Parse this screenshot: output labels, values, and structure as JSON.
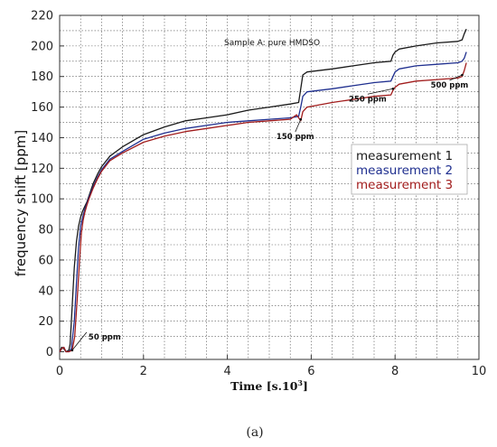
{
  "caption": "(a)",
  "chart_data": {
    "type": "line",
    "title": "Sample A: pure HMDSO",
    "xlabel": "Time [s.10",
    "xlabel_sup": "3",
    "xlabel_close": "]",
    "ylabel": "frequency shift  [ppm]",
    "xlim": [
      0,
      10
    ],
    "ylim": [
      -5,
      220
    ],
    "xticks": [
      0,
      2,
      4,
      6,
      8,
      10
    ],
    "yticks": [
      0,
      20,
      40,
      60,
      80,
      100,
      120,
      140,
      160,
      180,
      200,
      220
    ],
    "grid": true,
    "legend_position": "right",
    "annotations": [
      {
        "text": "50 ppm",
        "x": 0.3,
        "y": 1
      },
      {
        "text": "150 ppm",
        "x": 5.75,
        "y": 152
      },
      {
        "text": "250 ppm",
        "x": 7.95,
        "y": 172
      },
      {
        "text": "500 ppm",
        "x": 9.6,
        "y": 181
      }
    ],
    "series": [
      {
        "name": "measurement 1",
        "color": "#1a1a1a",
        "x": [
          0,
          0.05,
          0.1,
          0.15,
          0.22,
          0.25,
          0.3,
          0.35,
          0.4,
          0.45,
          0.5,
          0.55,
          0.6,
          0.65,
          0.7,
          0.8,
          0.9,
          1.0,
          1.2,
          1.5,
          2.0,
          2.5,
          3.0,
          3.5,
          4.0,
          4.5,
          5.0,
          5.5,
          5.7,
          5.75,
          5.8,
          5.9,
          6.5,
          7.0,
          7.5,
          7.9,
          7.95,
          8.0,
          8.1,
          8.5,
          9.0,
          9.5,
          9.6,
          9.65,
          9.7
        ],
        "y": [
          0,
          3,
          2,
          0,
          1,
          5,
          30,
          55,
          72,
          82,
          88,
          92,
          95,
          98,
          102,
          110,
          116,
          121,
          128,
          134,
          142,
          147,
          151,
          153,
          155,
          158,
          160,
          162,
          163,
          172,
          181,
          183,
          185,
          187,
          189,
          190,
          194,
          196,
          198,
          200,
          202,
          203,
          204,
          208,
          211
        ]
      },
      {
        "name": "measurement 2",
        "color": "#1f2f8f",
        "x": [
          0,
          0.05,
          0.1,
          0.15,
          0.22,
          0.28,
          0.35,
          0.4,
          0.45,
          0.5,
          0.55,
          0.6,
          0.65,
          0.7,
          0.8,
          0.9,
          1.0,
          1.2,
          1.5,
          2.0,
          2.5,
          3.0,
          3.5,
          4.0,
          4.5,
          5.0,
          5.5,
          5.7,
          5.75,
          5.8,
          5.9,
          6.5,
          7.0,
          7.5,
          7.9,
          7.95,
          8.0,
          8.1,
          8.5,
          9.0,
          9.5,
          9.6,
          9.65,
          9.7
        ],
        "y": [
          0,
          2,
          3,
          0,
          0,
          2,
          20,
          45,
          68,
          82,
          88,
          93,
          97,
          101,
          108,
          114,
          119,
          126,
          131,
          139,
          143,
          146,
          148,
          150,
          151,
          152,
          153,
          154,
          160,
          167,
          170,
          172,
          174,
          176,
          177,
          180,
          183,
          185,
          187,
          188,
          189,
          190,
          192,
          196
        ]
      },
      {
        "name": "measurement 3",
        "color": "#a11c1c",
        "x": [
          0,
          0.05,
          0.1,
          0.15,
          0.22,
          0.3,
          0.36,
          0.42,
          0.48,
          0.52,
          0.56,
          0.6,
          0.65,
          0.7,
          0.8,
          0.9,
          1.0,
          1.2,
          1.5,
          2.0,
          2.5,
          3.0,
          3.5,
          4.0,
          4.5,
          5.0,
          5.5,
          5.65,
          5.75,
          5.8,
          5.9,
          6.5,
          7.0,
          7.5,
          7.9,
          7.95,
          8.0,
          8.1,
          8.5,
          9.0,
          9.5,
          9.6,
          9.65,
          9.7
        ],
        "y": [
          0,
          2,
          3,
          0,
          0,
          1,
          10,
          35,
          62,
          78,
          86,
          91,
          96,
          100,
          107,
          113,
          118,
          125,
          130,
          137,
          141,
          144,
          146,
          148,
          150,
          151,
          152,
          155,
          151,
          157,
          160,
          163,
          165,
          167,
          168,
          171,
          173,
          175,
          177,
          178,
          179,
          180,
          184,
          189
        ]
      }
    ]
  }
}
